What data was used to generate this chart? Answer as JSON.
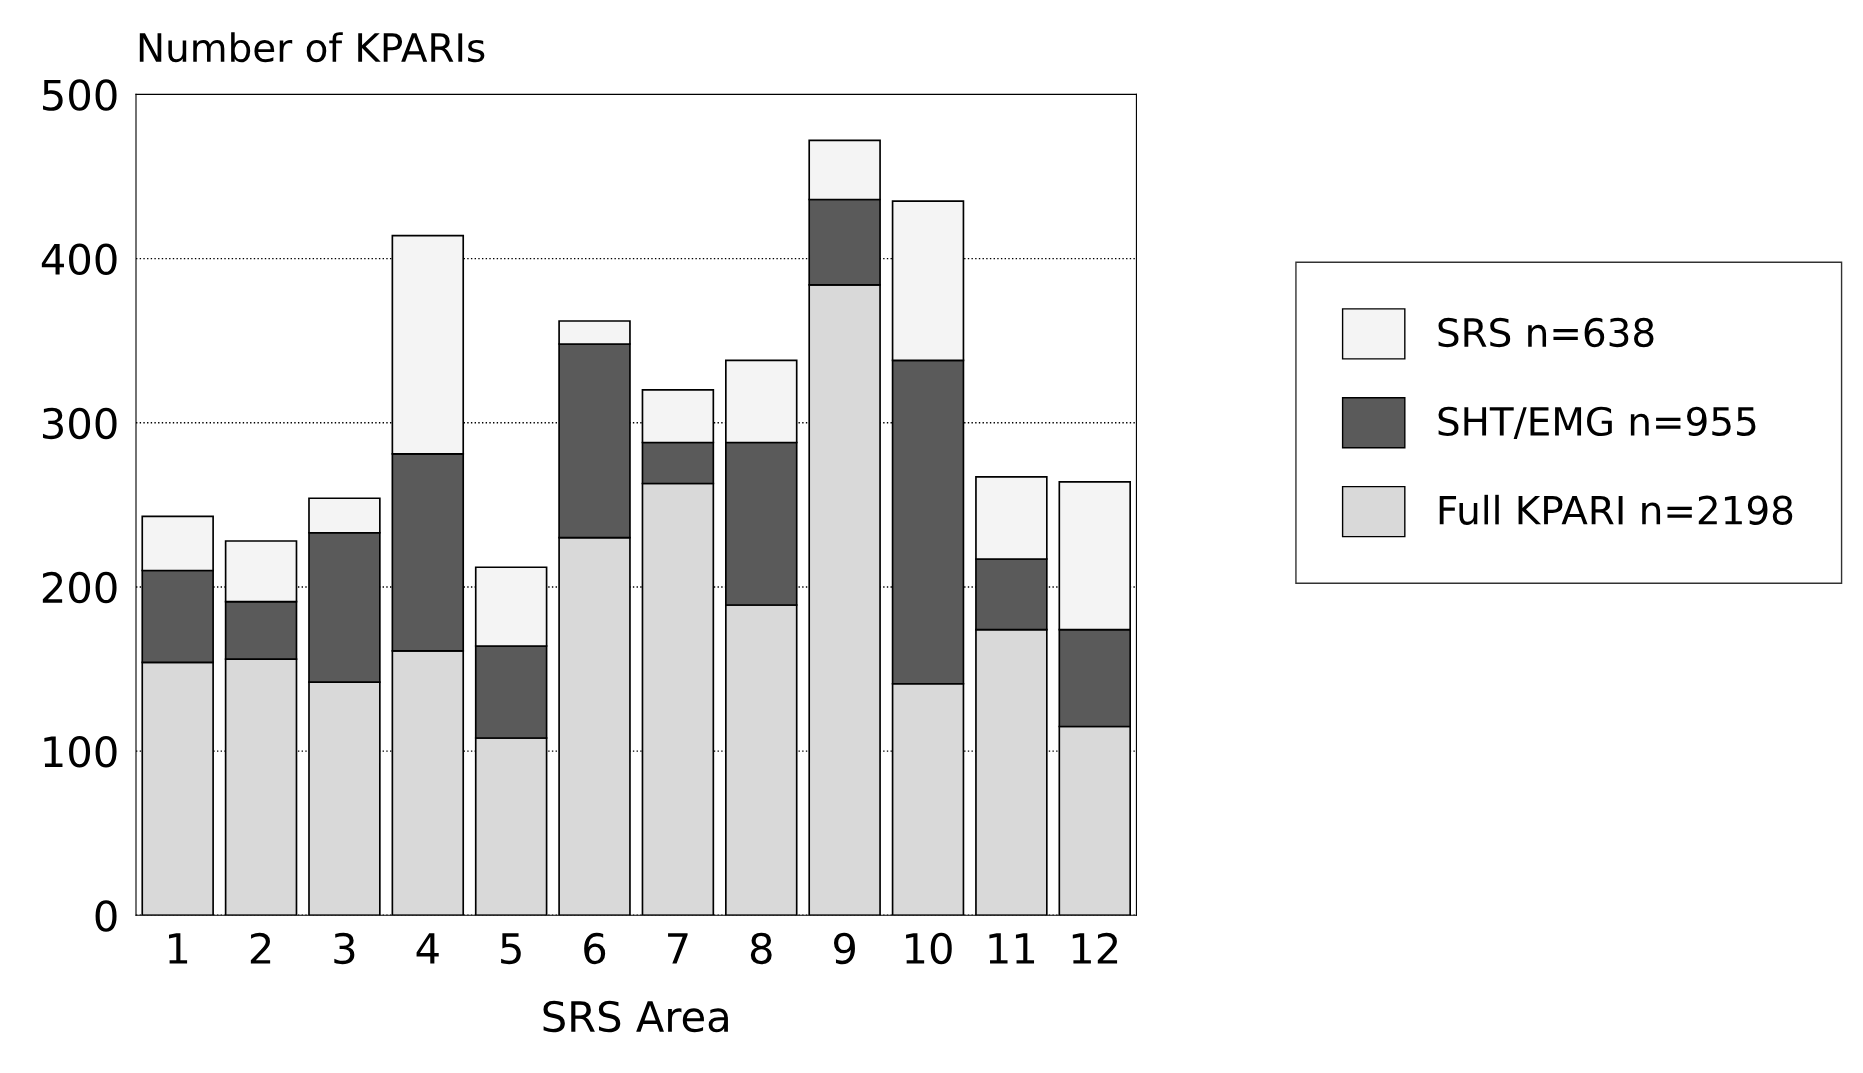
{
  "chart_data": {
    "type": "bar",
    "stacked": true,
    "ylabel": "Number of KPARIs",
    "xlabel": "SRS Area",
    "categories": [
      "1",
      "2",
      "3",
      "4",
      "5",
      "6",
      "7",
      "8",
      "9",
      "10",
      "11",
      "12"
    ],
    "series": [
      {
        "name": "Full KPARI n=2198",
        "color": "#d9d9d9",
        "values": [
          154,
          156,
          142,
          161,
          108,
          230,
          263,
          189,
          384,
          141,
          174,
          115
        ]
      },
      {
        "name": "SHT/EMG n=955",
        "color": "#5a5a5a",
        "values": [
          56,
          35,
          91,
          120,
          56,
          118,
          25,
          99,
          52,
          197,
          43,
          59
        ]
      },
      {
        "name": "SRS n=638",
        "color": "#f4f4f4",
        "values": [
          33,
          37,
          21,
          133,
          48,
          14,
          32,
          50,
          36,
          97,
          50,
          90
        ]
      }
    ],
    "ylim": [
      0,
      500
    ],
    "yticks": [
      0,
      100,
      200,
      300,
      400,
      500
    ],
    "grid": "y",
    "legend": "right"
  }
}
